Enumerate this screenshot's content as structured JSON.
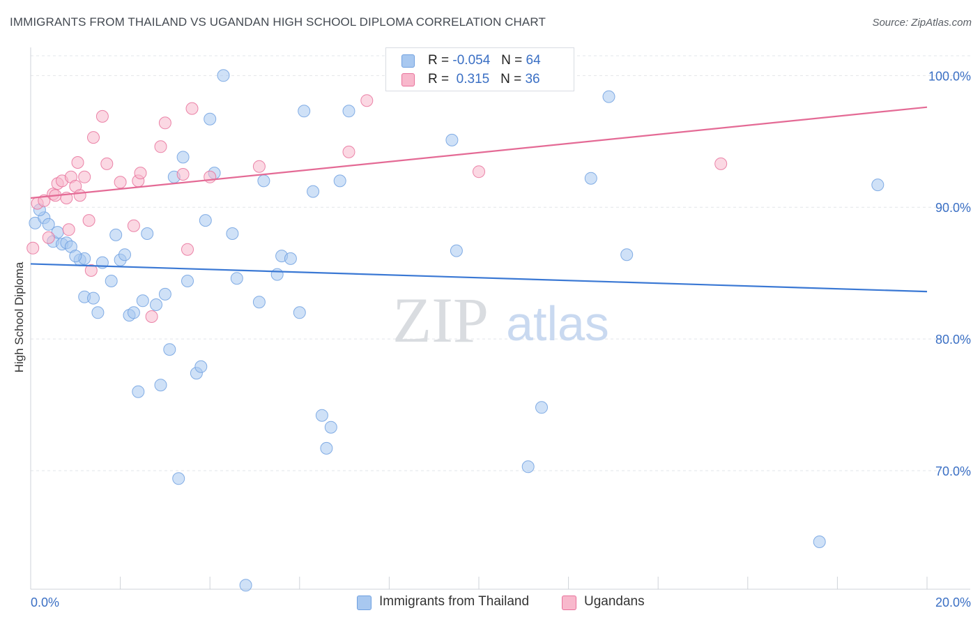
{
  "title": "IMMIGRANTS FROM THAILAND VS UGANDAN HIGH SCHOOL DIPLOMA CORRELATION CHART",
  "source": "Source: ZipAtlas.com",
  "watermark": {
    "zip": "ZIP",
    "atlas": "atlas"
  },
  "legend": [
    {
      "r_label": "R =",
      "r_value": "-0.054",
      "n_label": "N =",
      "n_value": "64",
      "color": "#a8c8f0"
    },
    {
      "r_label": "R =",
      "r_value": " 0.315",
      "n_label": "N =",
      "n_value": "36",
      "color": "#f8b8cc"
    }
  ],
  "bottom_legend": [
    {
      "label": "Immigrants from Thailand",
      "color": "#a8c8f0"
    },
    {
      "label": "Ugandans",
      "color": "#f8b8cc"
    }
  ],
  "chart_data": {
    "type": "scatter",
    "title": "IMMIGRANTS FROM THAILAND VS UGANDAN HIGH SCHOOL DIPLOMA CORRELATION CHART",
    "xlabel": "",
    "ylabel": "High School Diploma",
    "xlim": [
      0,
      20
    ],
    "ylim": [
      61,
      101.5
    ],
    "x_tick_labels": [
      "0.0%",
      "20.0%"
    ],
    "y_ticks": [
      70,
      80,
      90,
      100
    ],
    "y_tick_labels": [
      "70.0%",
      "80.0%",
      "90.0%",
      "100.0%"
    ],
    "grid": true,
    "series": [
      {
        "name": "Immigrants from Thailand",
        "color": "#6fa0e0",
        "fill": "#a8c8f0",
        "trend": {
          "x": [
            0,
            20
          ],
          "y": [
            85.7,
            83.6
          ]
        },
        "points": [
          [
            0.1,
            88.8
          ],
          [
            0.3,
            89.2
          ],
          [
            0.4,
            88.7
          ],
          [
            0.5,
            87.4
          ],
          [
            0.7,
            87.2
          ],
          [
            0.8,
            87.3
          ],
          [
            0.9,
            87.0
          ],
          [
            1.1,
            86.0
          ],
          [
            1.2,
            86.1
          ],
          [
            1.2,
            83.2
          ],
          [
            1.4,
            83.1
          ],
          [
            1.5,
            82.0
          ],
          [
            1.6,
            85.8
          ],
          [
            1.8,
            84.4
          ],
          [
            1.9,
            87.9
          ],
          [
            2.0,
            86.0
          ],
          [
            2.1,
            86.4
          ],
          [
            2.2,
            81.8
          ],
          [
            2.3,
            82.0
          ],
          [
            2.4,
            76.0
          ],
          [
            2.5,
            82.9
          ],
          [
            2.6,
            88.0
          ],
          [
            2.8,
            82.6
          ],
          [
            2.9,
            76.5
          ],
          [
            3.0,
            83.4
          ],
          [
            3.1,
            79.2
          ],
          [
            3.2,
            92.3
          ],
          [
            3.3,
            69.4
          ],
          [
            3.4,
            93.8
          ],
          [
            3.5,
            84.4
          ],
          [
            3.7,
            77.4
          ],
          [
            3.8,
            77.9
          ],
          [
            3.9,
            89.0
          ],
          [
            4.0,
            96.7
          ],
          [
            4.1,
            92.6
          ],
          [
            4.3,
            100.0
          ],
          [
            4.5,
            88.0
          ],
          [
            4.6,
            84.6
          ],
          [
            4.8,
            61.3
          ],
          [
            5.1,
            82.8
          ],
          [
            5.2,
            92.0
          ],
          [
            5.5,
            84.9
          ],
          [
            5.6,
            86.3
          ],
          [
            5.8,
            86.1
          ],
          [
            6.0,
            82.0
          ],
          [
            6.1,
            97.3
          ],
          [
            6.3,
            91.2
          ],
          [
            6.5,
            74.2
          ],
          [
            6.6,
            71.7
          ],
          [
            6.7,
            73.3
          ],
          [
            6.9,
            92.0
          ],
          [
            7.1,
            97.3
          ],
          [
            9.4,
            95.1
          ],
          [
            9.5,
            86.7
          ],
          [
            11.1,
            70.3
          ],
          [
            11.4,
            74.8
          ],
          [
            12.5,
            92.2
          ],
          [
            12.9,
            98.4
          ],
          [
            13.3,
            86.4
          ],
          [
            17.6,
            64.6
          ],
          [
            18.9,
            91.7
          ],
          [
            0.2,
            89.8
          ],
          [
            0.6,
            88.1
          ],
          [
            1.0,
            86.3
          ]
        ]
      },
      {
        "name": "Ugandans",
        "color": "#e8709a",
        "fill": "#f8b8cc",
        "trend": {
          "x": [
            0,
            20
          ],
          "y": [
            90.7,
            97.6
          ]
        },
        "points": [
          [
            0.05,
            86.9
          ],
          [
            0.15,
            90.3
          ],
          [
            0.3,
            90.5
          ],
          [
            0.4,
            87.7
          ],
          [
            0.5,
            91.0
          ],
          [
            0.55,
            90.9
          ],
          [
            0.6,
            91.8
          ],
          [
            0.7,
            92.0
          ],
          [
            0.8,
            90.7
          ],
          [
            0.85,
            88.3
          ],
          [
            0.9,
            92.3
          ],
          [
            1.0,
            91.6
          ],
          [
            1.05,
            93.4
          ],
          [
            1.1,
            90.9
          ],
          [
            1.2,
            92.3
          ],
          [
            1.3,
            89.0
          ],
          [
            1.35,
            85.2
          ],
          [
            1.4,
            95.3
          ],
          [
            1.6,
            96.9
          ],
          [
            1.7,
            93.3
          ],
          [
            2.0,
            91.9
          ],
          [
            2.3,
            88.6
          ],
          [
            2.4,
            92.0
          ],
          [
            2.45,
            92.6
          ],
          [
            2.7,
            81.7
          ],
          [
            2.9,
            94.6
          ],
          [
            3.0,
            96.4
          ],
          [
            3.4,
            92.5
          ],
          [
            3.5,
            86.8
          ],
          [
            3.6,
            97.5
          ],
          [
            4.0,
            92.3
          ],
          [
            5.1,
            93.1
          ],
          [
            7.1,
            94.2
          ],
          [
            7.5,
            98.1
          ],
          [
            10.0,
            92.7
          ],
          [
            15.4,
            93.3
          ]
        ]
      }
    ]
  }
}
